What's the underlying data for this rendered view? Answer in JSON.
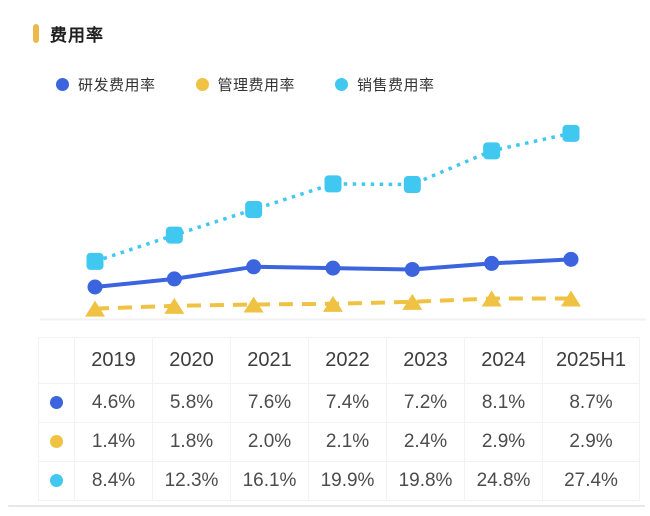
{
  "header": {
    "title": "费用率",
    "accent_color": "#ecb94d"
  },
  "chart_data": {
    "type": "line",
    "title": "费用率",
    "categories": [
      "2019",
      "2020",
      "2021",
      "2022",
      "2023",
      "2024",
      "2025H1"
    ],
    "series": [
      {
        "name": "研发费用率",
        "color": "#3b64de",
        "line_style": "solid",
        "marker": "circle",
        "values": [
          4.6,
          5.8,
          7.6,
          7.4,
          7.2,
          8.1,
          8.7
        ]
      },
      {
        "name": "管理费用率",
        "color": "#f0c243",
        "line_style": "dashed",
        "marker": "triangle",
        "values": [
          1.4,
          1.8,
          2.0,
          2.1,
          2.4,
          2.9,
          2.9
        ]
      },
      {
        "name": "销售费用率",
        "color": "#41c8f0",
        "line_style": "dotted",
        "marker": "square",
        "values": [
          8.4,
          12.3,
          16.1,
          19.9,
          19.8,
          24.8,
          27.4
        ]
      }
    ],
    "unit": "%",
    "ylim": [
      0,
      30
    ],
    "grid": false,
    "legend_position": "top",
    "x_axis_line_color": "#f1f1f1"
  },
  "table": {
    "header": [
      "",
      "2019",
      "2020",
      "2021",
      "2022",
      "2023",
      "2024",
      "2025H1"
    ],
    "rows": [
      {
        "series": "研发费用率",
        "color": "#3b64de",
        "values": [
          "4.6%",
          "5.8%",
          "7.6%",
          "7.4%",
          "7.2%",
          "8.1%",
          "8.7%"
        ]
      },
      {
        "series": "管理费用率",
        "color": "#f0c243",
        "values": [
          "1.4%",
          "1.8%",
          "2.0%",
          "2.1%",
          "2.4%",
          "2.9%",
          "2.9%"
        ]
      },
      {
        "series": "销售费用率",
        "color": "#41c8f0",
        "values": [
          "8.4%",
          "12.3%",
          "16.1%",
          "19.9%",
          "19.8%",
          "24.8%",
          "27.4%"
        ]
      }
    ]
  }
}
